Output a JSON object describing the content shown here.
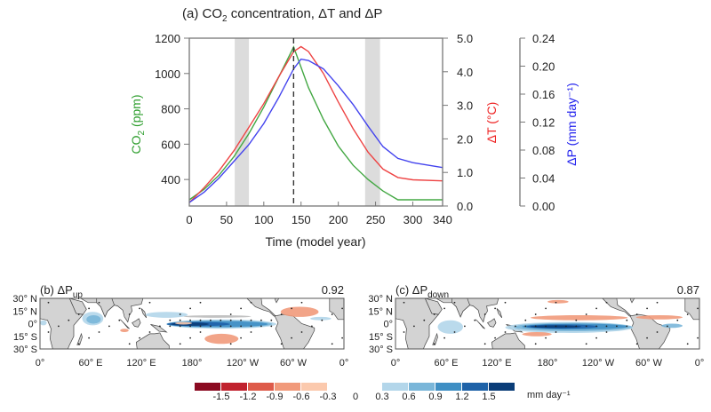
{
  "chart_data": [
    {
      "panel": "a",
      "type": "line",
      "title": "(a) CO₂ concentration, ΔT and ΔP",
      "title_parts": {
        "pre": "(a) CO",
        "sub": "2",
        "post": " concentration, ΔT and ΔP"
      },
      "xlabel": "Time (model year)",
      "xlim": [
        0,
        340
      ],
      "xticks": [
        0,
        50,
        100,
        150,
        200,
        250,
        300,
        340
      ],
      "axes": {
        "co2": {
          "label_pre": "CO",
          "label_sub": "2",
          "label_post": " (ppm)",
          "color": "#2e9e2e",
          "ylim": [
            250,
            1200
          ],
          "ticks": [
            400,
            600,
            800,
            1000,
            1200
          ],
          "side": "left"
        },
        "dT": {
          "label": "ΔT (°C)",
          "color": "#ee2222",
          "ylim": [
            0,
            5
          ],
          "ticks": [
            "0.0",
            "1.0",
            "2.0",
            "3.0",
            "4.0",
            "5.0"
          ],
          "side": "right"
        },
        "dP": {
          "label": "ΔP (mm day⁻¹)",
          "color": "#2222ee",
          "ylim": [
            0,
            0.24
          ],
          "ticks": [
            "0.00",
            "0.04",
            "0.08",
            "0.12",
            "0.16",
            "0.20",
            "0.24"
          ],
          "side": "far-right"
        }
      },
      "shaded_periods": [
        [
          61,
          80
        ],
        [
          236,
          256
        ]
      ],
      "peak_line_year": 140,
      "series": [
        {
          "name": "CO2",
          "axis": "co2",
          "color": "#44a844",
          "x": [
            0,
            20,
            40,
            60,
            80,
            100,
            120,
            140,
            160,
            180,
            200,
            220,
            240,
            260,
            280,
            300,
            340
          ],
          "y": [
            285,
            345,
            425,
            530,
            660,
            810,
            980,
            1150,
            920,
            740,
            590,
            480,
            400,
            335,
            285,
            285,
            285
          ]
        },
        {
          "name": "ΔT",
          "axis": "dT",
          "color": "#ee4444",
          "x": [
            0,
            20,
            40,
            60,
            80,
            100,
            120,
            140,
            150,
            160,
            180,
            200,
            220,
            240,
            260,
            280,
            300,
            340
          ],
          "y": [
            0.1,
            0.55,
            1.05,
            1.65,
            2.35,
            3.05,
            3.85,
            4.6,
            4.75,
            4.6,
            3.95,
            3.1,
            2.3,
            1.6,
            1.1,
            0.85,
            0.78,
            0.75
          ]
        },
        {
          "name": "ΔP",
          "axis": "dP",
          "color": "#4444ee",
          "x": [
            0,
            20,
            40,
            60,
            80,
            100,
            120,
            140,
            150,
            160,
            180,
            200,
            220,
            240,
            260,
            280,
            300,
            340
          ],
          "y": [
            0.005,
            0.02,
            0.04,
            0.064,
            0.088,
            0.118,
            0.155,
            0.196,
            0.21,
            0.208,
            0.196,
            0.172,
            0.145,
            0.114,
            0.085,
            0.068,
            0.062,
            0.055
          ]
        }
      ]
    },
    {
      "panel": "b",
      "type": "heatmap",
      "title_pre": "(b) ΔP",
      "title_sub": "up",
      "score": "0.92",
      "lat_ticks": [
        "30° N",
        "15° N",
        "0°",
        "15° S",
        "30° S"
      ],
      "lon_ticks": [
        "0°",
        "60° E",
        "120° E",
        "180°",
        "120° W",
        "60° W",
        "0°"
      ]
    },
    {
      "panel": "c",
      "type": "heatmap",
      "title_pre": "(c) ΔP",
      "title_sub": "down",
      "score": "0.87",
      "lat_ticks": [
        "30° N",
        "15° N",
        "0°",
        "15° S",
        "30° S"
      ],
      "lon_ticks": [
        "0°",
        "60° E",
        "120° E",
        "180°",
        "120° W",
        "60° W",
        "0°"
      ]
    }
  ],
  "colorbar": {
    "unit": "mm day⁻¹",
    "neg_colors": [
      "#8b0a21",
      "#c1222e",
      "#de5b4a",
      "#f19a7b",
      "#fbc9ad"
    ],
    "pos_colors": [
      "#b3d6ea",
      "#7ab6d9",
      "#3f8fc4",
      "#1e62a8",
      "#0b3d78"
    ],
    "labels": [
      "-1.5",
      "-1.2",
      "-0.9",
      "-0.6",
      "-0.3",
      "0",
      "0.3",
      "0.6",
      "0.9",
      "1.2",
      "1.5"
    ]
  }
}
